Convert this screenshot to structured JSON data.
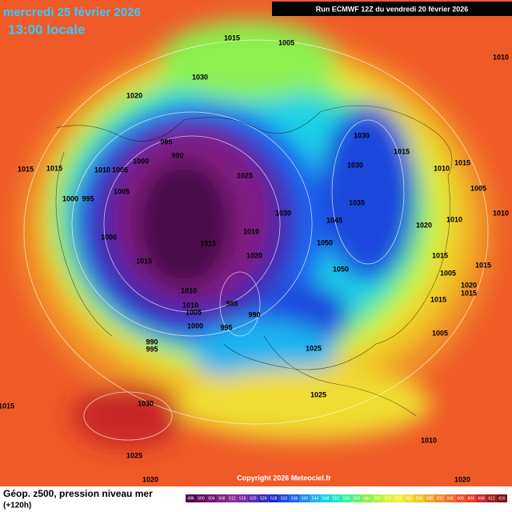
{
  "header": {
    "date": "mercredi 25 février 2026",
    "time": "13:00 locale",
    "run": "Run ECMWF 12Z du vendredi 20 février 2026",
    "copyright": "Copyright 2026 Meteociel.fr"
  },
  "legend": {
    "title": "Géop. z500, pression niveau mer",
    "subtitle": "(+120h)",
    "ticks": [
      496,
      500,
      504,
      508,
      512,
      516,
      520,
      524,
      528,
      532,
      536,
      540,
      544,
      548,
      552,
      556,
      560,
      564,
      568,
      572,
      576,
      580,
      584,
      588,
      592,
      596,
      600,
      604,
      608,
      612,
      616
    ],
    "colors": [
      "#4b0a4b",
      "#5a0f5a",
      "#6e146e",
      "#821e82",
      "#8c2896",
      "#7828a0",
      "#5a28aa",
      "#3c28b4",
      "#1e28c8",
      "#1e46dc",
      "#1e64f0",
      "#1e8cf0",
      "#1eb4f0",
      "#1ed2e6",
      "#1ee6c8",
      "#3cf0a0",
      "#64f078",
      "#8cf050",
      "#b4f03c",
      "#dcf03c",
      "#f0f03c",
      "#f0dc32",
      "#f0c828",
      "#f0aa28",
      "#f08c28",
      "#f06e28",
      "#f05028",
      "#e63c28",
      "#c82828",
      "#a01e1e",
      "#781414"
    ]
  },
  "isobar_labels": [
    "1015",
    "1005",
    "1030",
    "1020",
    "995",
    "990",
    "1000",
    "1010",
    "1005",
    "1015",
    "1015",
    "1000",
    "995",
    "1005",
    "1025",
    "1030",
    "1030",
    "1015",
    "1030",
    "1035",
    "1045",
    "1020",
    "1010",
    "1010",
    "1015",
    "1005",
    "1050",
    "1050",
    "1015",
    "1005",
    "1020",
    "1015",
    "1005",
    "1000",
    "1015",
    "1015",
    "1010",
    "1020",
    "1010",
    "1010",
    "1005",
    "985",
    "990",
    "1000",
    "995",
    "990",
    "995",
    "1025",
    "1025",
    "1030",
    "1015",
    "1025",
    "1020",
    "1010",
    "1020",
    "1010",
    "1010",
    "1015",
    "1015"
  ]
}
